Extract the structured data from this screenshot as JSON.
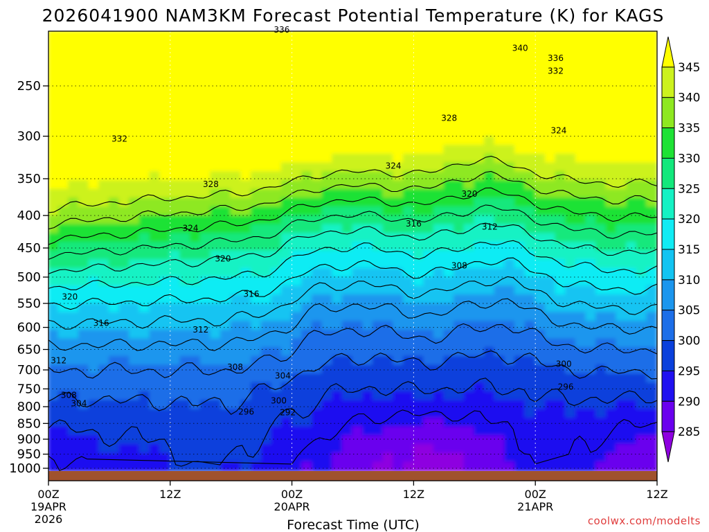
{
  "chart_data": {
    "type": "heatmap",
    "title": "2026041900 NAM3KM Forecast Potential Temperature (K) for KAGS",
    "xlabel": "Forecast Time (UTC)",
    "ylabel": "",
    "y_axis": {
      "scale": "log-pressure",
      "units": "hPa",
      "ticks": [
        "250",
        "300",
        "350",
        "400",
        "450",
        "500",
        "550",
        "600",
        "650",
        "700",
        "750",
        "800",
        "850",
        "900",
        "950",
        "1000"
      ],
      "ylim": [
        1025,
        200
      ]
    },
    "x_axis": {
      "units": "forecast hours",
      "xlim": [
        0,
        60
      ],
      "ticks": [
        {
          "hour": 0,
          "label": "00Z",
          "sub1": "19APR",
          "sub2": "2026"
        },
        {
          "hour": 12,
          "label": "12Z",
          "sub1": "",
          "sub2": ""
        },
        {
          "hour": 24,
          "label": "00Z",
          "sub1": "20APR",
          "sub2": ""
        },
        {
          "hour": 36,
          "label": "12Z",
          "sub1": "",
          "sub2": ""
        },
        {
          "hour": 48,
          "label": "00Z",
          "sub1": "21APR",
          "sub2": ""
        },
        {
          "hour": 60,
          "label": "12Z",
          "sub1": "",
          "sub2": ""
        }
      ]
    },
    "colorbar": {
      "labels": [
        "345",
        "340",
        "335",
        "330",
        "325",
        "320",
        "315",
        "310",
        "305",
        "300",
        "295",
        "290",
        "285"
      ],
      "levels": [
        285,
        290,
        295,
        300,
        305,
        310,
        315,
        320,
        325,
        330,
        335,
        340,
        345
      ],
      "colors": [
        "#8e00e0",
        "#6a00ee",
        "#1f10f0",
        "#0a40dc",
        "#1c6ee8",
        "#1b96ee",
        "#12c4f2",
        "#10ecf4",
        "#15f2c4",
        "#12e87c",
        "#1ee235",
        "#8ee820",
        "#ccf21e",
        "#ffff00"
      ]
    },
    "contour_levels": [
      292,
      296,
      300,
      304,
      308,
      312,
      316,
      320,
      324,
      328,
      332,
      336,
      340
    ],
    "contour_labels": [
      {
        "text": "336",
        "hour": 23,
        "p": 204
      },
      {
        "text": "340",
        "hour": 46.5,
        "p": 218
      },
      {
        "text": "336",
        "hour": 50,
        "p": 226
      },
      {
        "text": "332",
        "hour": 50,
        "p": 237
      },
      {
        "text": "328",
        "hour": 39.5,
        "p": 281
      },
      {
        "text": "324",
        "hour": 50.3,
        "p": 294
      },
      {
        "text": "332",
        "hour": 7,
        "p": 303
      },
      {
        "text": "324",
        "hour": 34,
        "p": 334
      },
      {
        "text": "328",
        "hour": 16,
        "p": 357
      },
      {
        "text": "320",
        "hour": 41.5,
        "p": 370
      },
      {
        "text": "316",
        "hour": 36,
        "p": 412
      },
      {
        "text": "312",
        "hour": 43.5,
        "p": 417
      },
      {
        "text": "324",
        "hour": 14,
        "p": 419
      },
      {
        "text": "308",
        "hour": 40.5,
        "p": 480
      },
      {
        "text": "320",
        "hour": 17.2,
        "p": 468
      },
      {
        "text": "316",
        "hour": 20,
        "p": 532
      },
      {
        "text": "320",
        "hour": 2.1,
        "p": 537
      },
      {
        "text": "316",
        "hour": 5.2,
        "p": 591
      },
      {
        "text": "312",
        "hour": 15,
        "p": 605
      },
      {
        "text": "312",
        "hour": 1,
        "p": 677
      },
      {
        "text": "308",
        "hour": 18.4,
        "p": 693
      },
      {
        "text": "300",
        "hour": 50.8,
        "p": 685
      },
      {
        "text": "304",
        "hour": 23.1,
        "p": 715
      },
      {
        "text": "296",
        "hour": 51,
        "p": 744
      },
      {
        "text": "308",
        "hour": 2,
        "p": 767
      },
      {
        "text": "304",
        "hour": 3,
        "p": 791
      },
      {
        "text": "300",
        "hour": 22.7,
        "p": 783
      },
      {
        "text": "296",
        "hour": 19.5,
        "p": 815
      },
      {
        "text": "292",
        "hour": 23.6,
        "p": 817
      }
    ]
  },
  "credit": "coolwx.com/modelts"
}
